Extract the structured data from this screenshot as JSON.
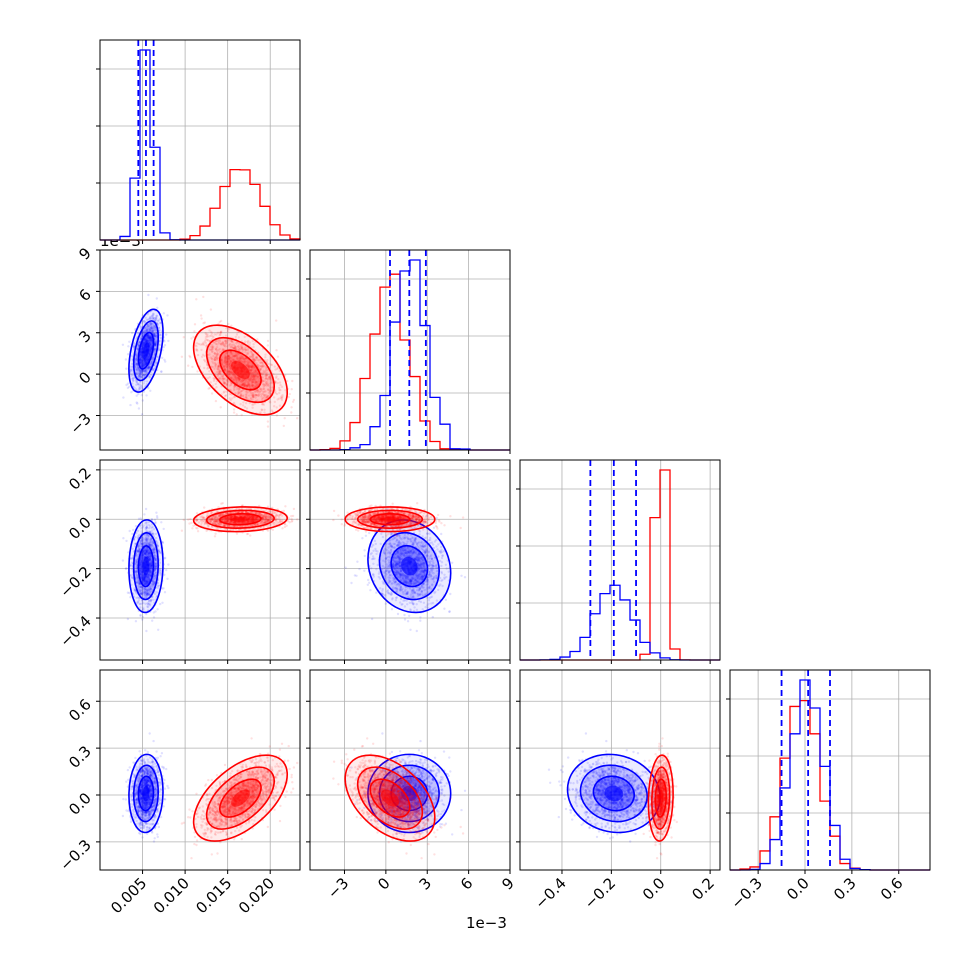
{
  "colors": {
    "series_blue": "#0000ff",
    "series_red": "#ff0000",
    "grid": "#b0b0b0"
  },
  "offset_labels": {
    "p1_y": "1e−3",
    "p1_x": "1e−3"
  },
  "chart_data": {
    "type": "corner",
    "title": "",
    "grid": true,
    "legend": "none",
    "quantile_lines": "dashed, series_blue only",
    "series": [
      {
        "color": "#0000ff",
        "means": [
          0.0054,
          0.0017,
          -0.19,
          0.01
        ],
        "stds": [
          0.0008,
          0.0012,
          0.075,
          0.1
        ],
        "quantiles": [
          [
            0.0045,
            0.0054,
            0.0063
          ],
          [
            0.0003,
            0.0017,
            0.0029
          ],
          [
            -0.285,
            -0.19,
            -0.1
          ],
          [
            -0.15,
            0.02,
            0.16
          ]
        ]
      },
      {
        "color": "#ff0000",
        "means": [
          0.0165,
          0.0003,
          0.0,
          -0.02
        ],
        "stds": [
          0.0022,
          0.0013,
          0.02,
          0.11
        ]
      }
    ],
    "panels": [
      {
        "row": 0,
        "col": 0,
        "kind": "hist",
        "x": "p0",
        "xlim": [
          0.0,
          0.0235
        ],
        "xticks": [
          0.005,
          0.01,
          0.015,
          0.02
        ]
      },
      {
        "row": 1,
        "col": 0,
        "kind": "scatter",
        "x": "p0",
        "y": "p1",
        "xlim": [
          0.0,
          0.0235
        ],
        "ylim": [
          -0.0055,
          0.009
        ],
        "yticks": [
          -0.003,
          0.0,
          0.003,
          0.006,
          0.009
        ]
      },
      {
        "row": 1,
        "col": 1,
        "kind": "hist",
        "x": "p1",
        "xlim": [
          -0.0055,
          0.009
        ],
        "xticks": [
          -0.003,
          0.0,
          0.003,
          0.006,
          0.009
        ]
      },
      {
        "row": 2,
        "col": 0,
        "kind": "scatter",
        "x": "p0",
        "y": "p2",
        "xlim": [
          0.0,
          0.0235
        ],
        "ylim": [
          -0.57,
          0.24
        ],
        "yticks": [
          -0.4,
          -0.2,
          0.0,
          0.2
        ]
      },
      {
        "row": 2,
        "col": 1,
        "kind": "scatter",
        "x": "p1",
        "y": "p2",
        "xlim": [
          -0.0055,
          0.009
        ],
        "ylim": [
          -0.57,
          0.24
        ]
      },
      {
        "row": 2,
        "col": 2,
        "kind": "hist",
        "x": "p2",
        "xlim": [
          -0.57,
          0.24
        ],
        "xticks": [
          -0.4,
          -0.2,
          0.0,
          0.2
        ]
      },
      {
        "row": 3,
        "col": 0,
        "kind": "scatter",
        "x": "p0",
        "y": "p3",
        "xlim": [
          0.0,
          0.0235
        ],
        "ylim": [
          -0.48,
          0.8
        ],
        "yticks": [
          -0.3,
          0.0,
          0.3,
          0.6
        ]
      },
      {
        "row": 3,
        "col": 1,
        "kind": "scatter",
        "x": "p1",
        "y": "p3",
        "xlim": [
          -0.0055,
          0.009
        ],
        "ylim": [
          -0.48,
          0.8
        ]
      },
      {
        "row": 3,
        "col": 2,
        "kind": "scatter",
        "x": "p2",
        "y": "p3",
        "xlim": [
          -0.57,
          0.24
        ],
        "ylim": [
          -0.48,
          0.8
        ]
      },
      {
        "row": 3,
        "col": 3,
        "kind": "hist",
        "x": "p3",
        "xlim": [
          -0.48,
          0.8
        ],
        "xticks": [
          -0.3,
          0.0,
          0.3,
          0.6
        ]
      }
    ],
    "tick_labels": {
      "p0_x": [
        "0.005",
        "0.010",
        "0.015",
        "0.020"
      ],
      "p1_y": [
        "−3",
        "0",
        "3",
        "6",
        "9"
      ],
      "p1_x": [
        "−3",
        "0",
        "3",
        "6",
        "9"
      ],
      "p2_y": [
        "−0.4",
        "−0.2",
        "0.0",
        "0.2"
      ],
      "p2_x": [
        "−0.4",
        "−0.2",
        "0.0",
        "0.2"
      ],
      "p3_y": [
        "−0.3",
        "0.0",
        "0.3",
        "0.6"
      ],
      "p3_x": [
        "−0.3",
        "0.0",
        "0.3",
        "0.6"
      ]
    }
  }
}
